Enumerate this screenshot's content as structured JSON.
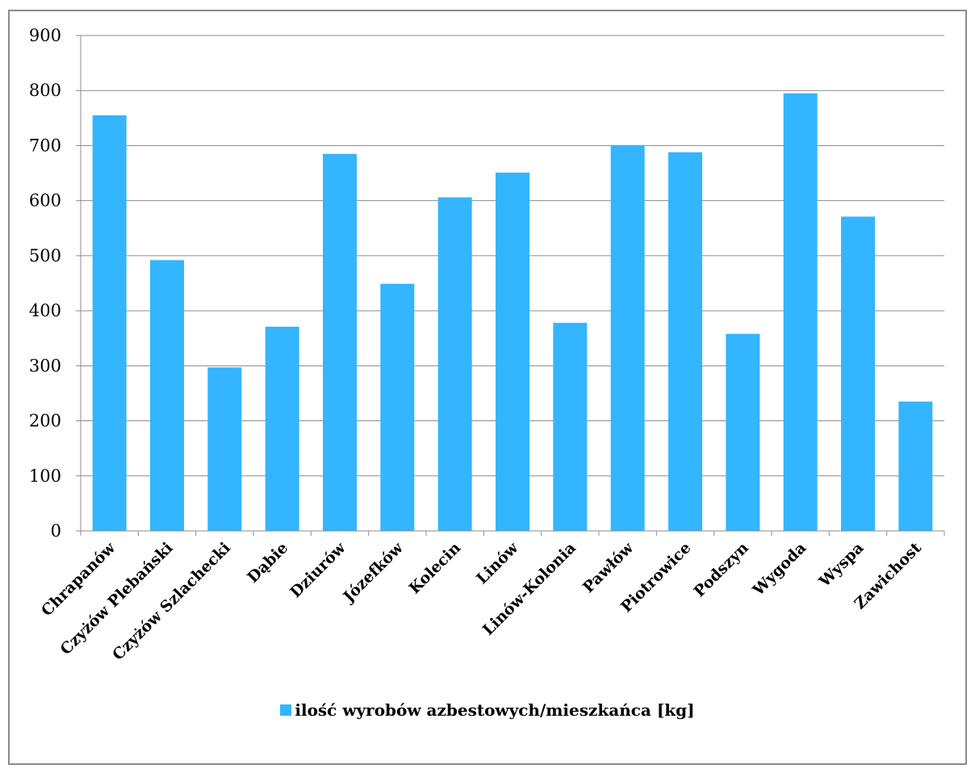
{
  "chart_data": {
    "type": "bar",
    "categories": [
      "Chrapanów",
      "Czyżów Plebański",
      "Czyżów Szlachecki",
      "Dąbie",
      "Dziurów",
      "Józefków",
      "Kolecin",
      "Linów",
      "Linów-Kolonia",
      "Pawłów",
      "Piotrowice",
      "Podszyn",
      "Wygoda",
      "Wyspa",
      "Zawichost"
    ],
    "series": [
      {
        "name": "ilość wyrobów azbestowych/mieszkańca [kg]",
        "values": [
          755,
          492,
          297,
          371,
          685,
          449,
          606,
          651,
          378,
          701,
          688,
          358,
          795,
          571,
          235
        ],
        "color": "#33b5ff"
      }
    ],
    "ylim": [
      0,
      900
    ],
    "yticks": [
      "0",
      "100",
      "200",
      "300",
      "400",
      "500",
      "600",
      "700",
      "800",
      "900"
    ],
    "grid": true,
    "legend_position": "bottom"
  }
}
